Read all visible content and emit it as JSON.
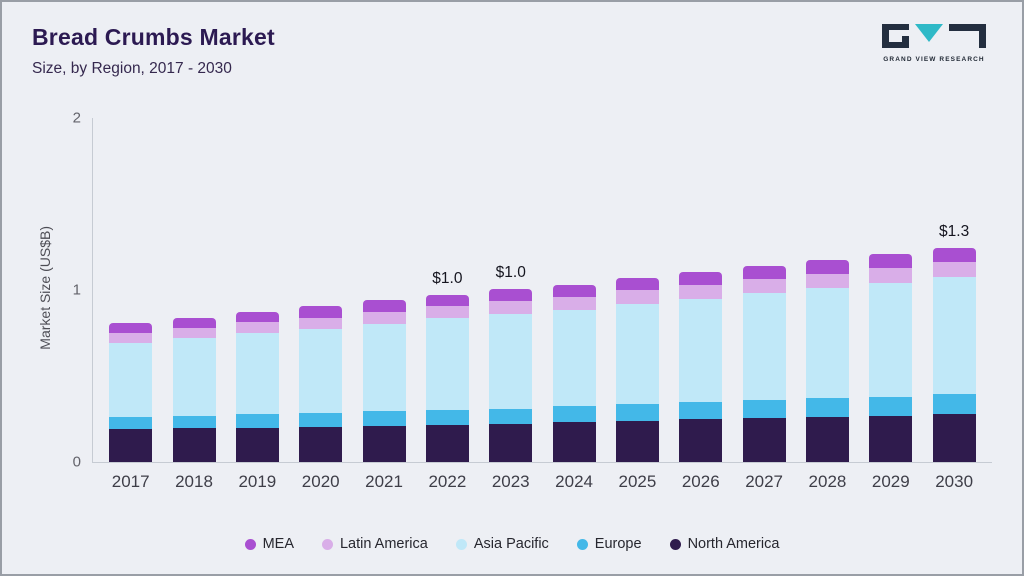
{
  "header": {
    "title": "Bread Crumbs Market",
    "subtitle": "Size, by Region, 2017 - 2030"
  },
  "logo": {
    "name": "Grand View Research",
    "text": "GRAND VIEW RESEARCH",
    "dark_color": "#232e3f",
    "teal_color": "#2fb9c7"
  },
  "chart_data": {
    "type": "bar",
    "stacked": true,
    "title": "Bread Crumbs Market Size, by Region, 2017 - 2030",
    "ylabel": "Market Size (US$B)",
    "ylim": [
      0,
      2
    ],
    "yticks": [
      0,
      1,
      2
    ],
    "grid": false,
    "legend_position": "bottom",
    "categories": [
      "2017",
      "2018",
      "2019",
      "2020",
      "2021",
      "2022",
      "2023",
      "2024",
      "2025",
      "2026",
      "2027",
      "2028",
      "2029",
      "2030"
    ],
    "series": [
      {
        "name": "North America",
        "color": "#2f1b4d",
        "values": [
          0.19,
          0.195,
          0.2,
          0.205,
          0.21,
          0.215,
          0.22,
          0.23,
          0.24,
          0.25,
          0.255,
          0.26,
          0.27,
          0.28
        ]
      },
      {
        "name": "Europe",
        "color": "#43b8e8",
        "values": [
          0.07,
          0.075,
          0.08,
          0.08,
          0.085,
          0.09,
          0.09,
          0.095,
          0.1,
          0.1,
          0.105,
          0.11,
          0.11,
          0.115
        ]
      },
      {
        "name": "Asia Pacific",
        "color": "#c0e8f8",
        "values": [
          0.43,
          0.45,
          0.47,
          0.49,
          0.51,
          0.53,
          0.55,
          0.56,
          0.58,
          0.6,
          0.62,
          0.64,
          0.66,
          0.68
        ]
      },
      {
        "name": "Latin America",
        "color": "#d9aee8",
        "values": [
          0.06,
          0.06,
          0.065,
          0.065,
          0.07,
          0.07,
          0.075,
          0.075,
          0.08,
          0.08,
          0.085,
          0.085,
          0.09,
          0.09
        ]
      },
      {
        "name": "MEA",
        "color": "#a94fd1",
        "values": [
          0.06,
          0.06,
          0.06,
          0.065,
          0.065,
          0.065,
          0.07,
          0.07,
          0.07,
          0.075,
          0.075,
          0.08,
          0.08,
          0.08
        ]
      }
    ],
    "legend_order": [
      "MEA",
      "Latin America",
      "Asia Pacific",
      "Europe",
      "North America"
    ],
    "annotations": {
      "2022": "$1.0",
      "2023": "$1.0",
      "2030": "$1.3"
    }
  }
}
